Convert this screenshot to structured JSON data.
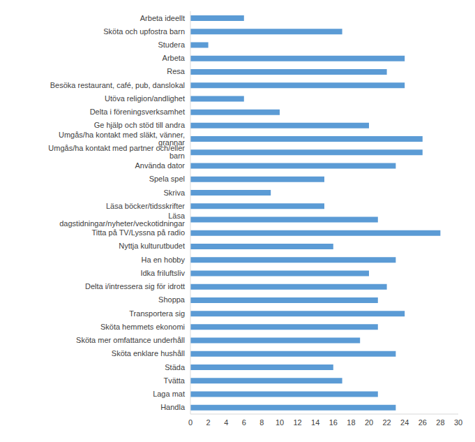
{
  "chart_data": {
    "type": "bar",
    "orientation": "horizontal",
    "categories": [
      "Arbeta ideellt",
      "Sköta och upfostra barn",
      "Studera",
      "Arbeta",
      "Resa",
      "Besöka restaurant, café, pub, danslokal",
      "Utöva religion/andlighet",
      "Delta i föreningsverksamhet",
      "Ge hjälp och stöd till andra",
      "Umgås/ha kontakt med släkt, vänner, grannar",
      "Umgås/ha kontakt med partner och/eller barn",
      "Använda dator",
      "Spela spel",
      "Skriva",
      "Läsa böcker/tidsskrifter",
      "Läsa dagstidningar/nyheter/veckotidningar",
      "Titta på TV/Lyssna på radio",
      "Nyttja kulturutbudet",
      "Ha en hobby",
      "Idka friluftsliv",
      "Delta i/intressera sig för idrott",
      "Shoppa",
      "Transportera sig",
      "Sköta hemmets ekonomi",
      "Sköta mer omfattance underhåll",
      "Sköta enklare hushåll",
      "Städa",
      "Tvätta",
      "Laga mat",
      "Handla"
    ],
    "values": [
      6,
      17,
      2,
      24,
      22,
      24,
      6,
      10,
      20,
      26,
      26,
      23,
      15,
      9,
      15,
      21,
      28,
      16,
      23,
      20,
      22,
      21,
      24,
      21,
      19,
      23,
      16,
      17,
      21,
      23
    ],
    "color": "#5b9bd5",
    "xlim": [
      0,
      30
    ],
    "xticks": [
      0,
      2,
      4,
      6,
      8,
      10,
      12,
      14,
      16,
      18,
      20,
      22,
      24,
      26,
      28,
      30
    ],
    "grid": false
  }
}
